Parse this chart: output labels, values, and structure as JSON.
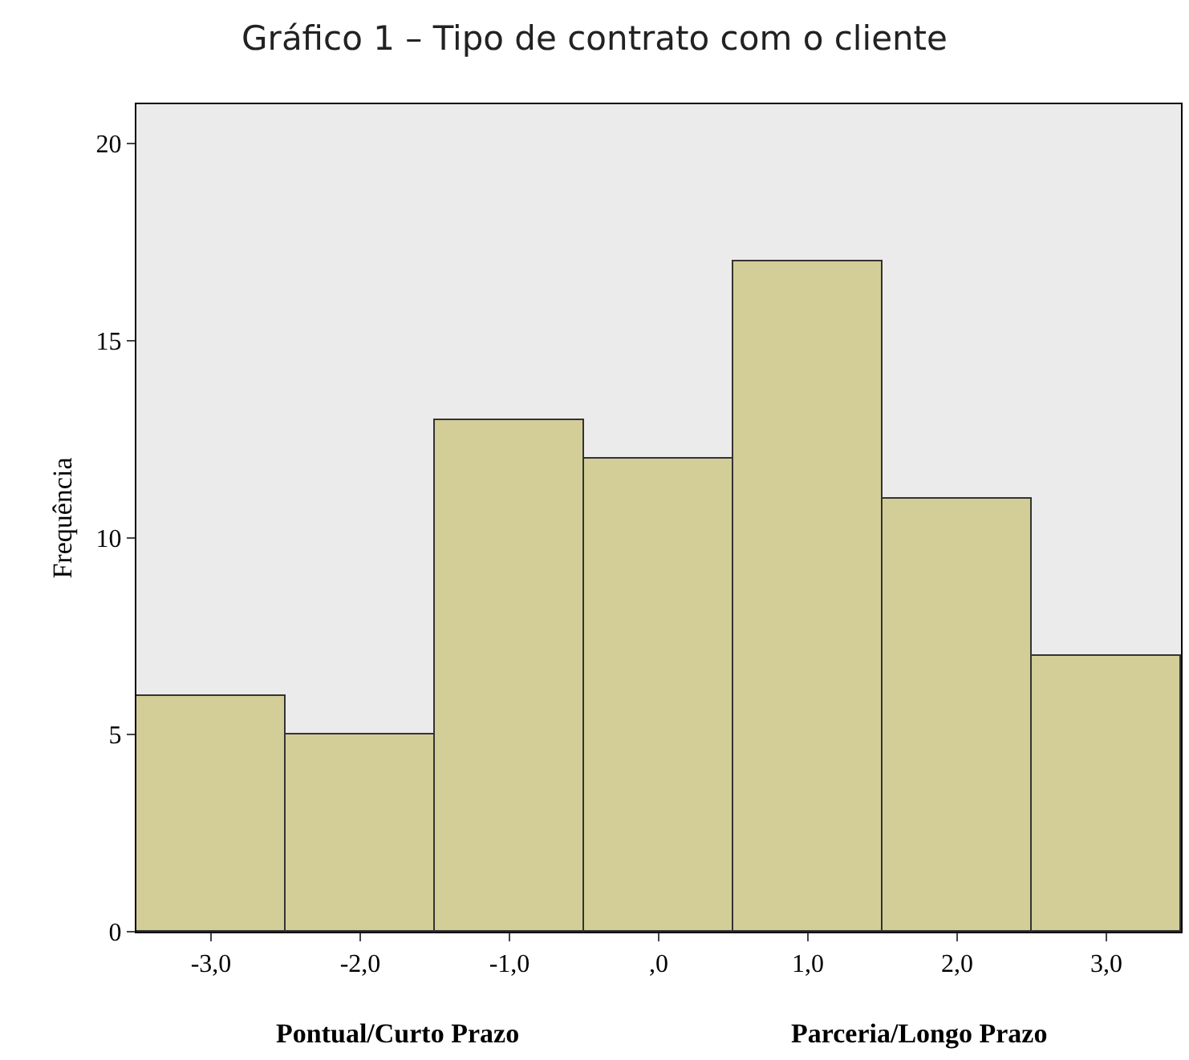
{
  "chart_data": {
    "type": "histogram",
    "title": "Gráfico 1 – Tipo de contrato com o cliente",
    "ylabel": "Frequência",
    "bins": [
      -3.5,
      -2.5,
      -1.5,
      -0.5,
      0.5,
      1.5,
      2.5,
      3.5
    ],
    "values": [
      6,
      5,
      13,
      12,
      17,
      11,
      7
    ],
    "color": "#d3ce98",
    "xlim": [
      -3.5,
      3.5
    ],
    "xticks": [
      {
        "value": -3,
        "label": "-3,0"
      },
      {
        "value": -2,
        "label": "-2,0"
      },
      {
        "value": -1,
        "label": "-1,0"
      },
      {
        "value": 0,
        "label": ",0"
      },
      {
        "value": 1,
        "label": "1,0"
      },
      {
        "value": 2,
        "label": "2,0"
      },
      {
        "value": 3,
        "label": "3,0"
      }
    ],
    "ylim": [
      0,
      21
    ],
    "yticks": [
      0,
      5,
      10,
      15,
      20
    ],
    "grid": false,
    "annotations": [
      "Pontual/Curto Prazo",
      "Parceria/Longo Prazo"
    ]
  }
}
